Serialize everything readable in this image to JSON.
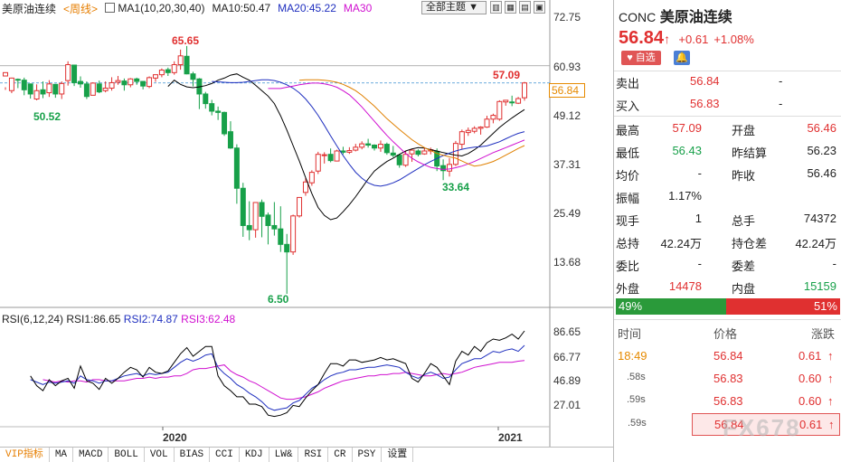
{
  "header": {
    "symbol": "美原油连续",
    "period": "<周线>",
    "ma_label": "MA1(10,20,30,40)",
    "ma10": "MA10:50.47",
    "ma20": "MA20:45.22",
    "ma30": "MA30",
    "theme": "全部主题"
  },
  "price_axis": [
    "72.75",
    "60.93",
    "49.12",
    "37.31",
    "25.49",
    "13.68"
  ],
  "rsi_axis": [
    "86.65",
    "66.77",
    "46.89",
    "27.01"
  ],
  "date_axis": [
    "2020",
    "2021"
  ],
  "annotations": {
    "high": "65.65",
    "low1": "50.52",
    "recent": "57.09",
    "dip": "33.64",
    "min": "6.50",
    "current": "56.84"
  },
  "rsi": {
    "label": "RSI(6,12,24)",
    "r1": "RSI1:86.65",
    "r2": "RSI2:74.87",
    "r3": "RSI3:62.48"
  },
  "tabs": [
    "VIP指标",
    "MA",
    "MACD",
    "BOLL",
    "VOL",
    "BIAS",
    "CCI",
    "KDJ",
    "LW&",
    "RSI",
    "CR",
    "PSY",
    "设置"
  ],
  "colors": {
    "up": "#e03030",
    "down": "#17a049",
    "ma10": "#000000",
    "ma20": "#1f2fbf",
    "ma30": "#d010d0",
    "ma40": "#e08000"
  },
  "chart_data": {
    "type": "candlestick",
    "y_range": [
      6.5,
      72.75
    ],
    "candles": [
      [
        58.5,
        59.3,
        55.8,
        55.2
      ],
      [
        55.0,
        58.0,
        58.1,
        54.4
      ],
      [
        57.7,
        57.5,
        57.9,
        55.6
      ],
      [
        57.5,
        55.2,
        58.1,
        53.9
      ],
      [
        56.6,
        54.2,
        56.7,
        53.1
      ],
      [
        53.0,
        55.0,
        56.5,
        52.7
      ],
      [
        55.2,
        54.2,
        57.2,
        53.2
      ],
      [
        54.5,
        56.6,
        57.5,
        53.5
      ],
      [
        56.5,
        54.2,
        56.6,
        53.3
      ],
      [
        54.2,
        56.7,
        57.2,
        53.0
      ],
      [
        57.4,
        61.2,
        62.0,
        56.2
      ],
      [
        61.1,
        56.9,
        61.2,
        56.1
      ],
      [
        57.2,
        56.6,
        58.4,
        55.7
      ],
      [
        56.6,
        53.6,
        57.2,
        53.0
      ],
      [
        53.9,
        56.8,
        57.0,
        53.9
      ],
      [
        56.6,
        54.7,
        57.4,
        54.4
      ],
      [
        55.0,
        55.6,
        57.2,
        54.6
      ],
      [
        55.6,
        56.9,
        58.2,
        55.0
      ],
      [
        57.0,
        57.4,
        58.5,
        56.4
      ],
      [
        57.3,
        56.4,
        57.9,
        55.0
      ],
      [
        56.4,
        57.8,
        58.0,
        55.8
      ],
      [
        57.8,
        57.2,
        58.1,
        56.4
      ],
      [
        57.2,
        56.1,
        57.3,
        55.3
      ],
      [
        56.0,
        58.1,
        58.4,
        55.6
      ],
      [
        58.0,
        58.8,
        58.8,
        57.1
      ],
      [
        58.8,
        59.9,
        60.3,
        58.2
      ],
      [
        60.0,
        59.3,
        60.5,
        58.5
      ],
      [
        59.3,
        61.2,
        62.0,
        58.8
      ],
      [
        61.2,
        63.3,
        64.8,
        60.0
      ],
      [
        63.2,
        59.0,
        65.65,
        58.9
      ],
      [
        59.0,
        57.7,
        59.5,
        56.0
      ],
      [
        57.8,
        54.2,
        58.0,
        50.6
      ],
      [
        54.2,
        51.9,
        54.7,
        50.7
      ],
      [
        51.9,
        50.1,
        52.8,
        49.1
      ],
      [
        50.1,
        49.8,
        51.2,
        48.0
      ],
      [
        49.8,
        44.7,
        50.0,
        44.2
      ],
      [
        45.2,
        41.3,
        47.7,
        41.1
      ],
      [
        41.3,
        31.7,
        42.2,
        28.0
      ],
      [
        31.7,
        22.8,
        33.0,
        20.1
      ],
      [
        22.8,
        21.8,
        28.6,
        19.3
      ],
      [
        21.8,
        28.3,
        28.3,
        19.9
      ],
      [
        28.3,
        25.0,
        29.0,
        20.0
      ],
      [
        25.3,
        22.8,
        25.9,
        18.3
      ],
      [
        22.8,
        22.0,
        28.4,
        20.4
      ],
      [
        22.0,
        18.3,
        27.4,
        16.5
      ],
      [
        18.3,
        16.5,
        20.8,
        6.5
      ],
      [
        16.5,
        25.1,
        25.4,
        15.8
      ],
      [
        25.1,
        29.5,
        29.6,
        24.7
      ],
      [
        30.7,
        33.2,
        34.1,
        29.9
      ],
      [
        33.0,
        35.5,
        36.0,
        32.3
      ],
      [
        35.8,
        39.8,
        40.4,
        35.1
      ],
      [
        39.7,
        39.7,
        40.3,
        37.6
      ],
      [
        39.8,
        38.3,
        41.2,
        37.9
      ],
      [
        38.2,
        40.6,
        40.9,
        38.1
      ],
      [
        40.6,
        40.3,
        41.6,
        39.8
      ],
      [
        40.3,
        40.7,
        41.5,
        39.9
      ],
      [
        40.8,
        41.5,
        42.3,
        40.5
      ],
      [
        41.5,
        42.3,
        42.9,
        41.0
      ],
      [
        42.3,
        42.0,
        43.5,
        41.4
      ],
      [
        42.0,
        41.3,
        42.2,
        40.7
      ],
      [
        41.3,
        42.2,
        43.1,
        40.4
      ],
      [
        42.2,
        40.2,
        42.6,
        39.7
      ],
      [
        40.1,
        39.6,
        41.8,
        39.1
      ],
      [
        39.6,
        37.3,
        39.9,
        36.6
      ],
      [
        37.2,
        39.8,
        40.5,
        36.8
      ],
      [
        39.9,
        40.8,
        41.0,
        38.0
      ],
      [
        40.6,
        39.8,
        41.0,
        39.3
      ],
      [
        39.9,
        40.6,
        41.5,
        39.7
      ],
      [
        40.6,
        40.9,
        41.4,
        39.8
      ],
      [
        40.5,
        37.0,
        41.2,
        35.8
      ],
      [
        37.1,
        35.9,
        38.6,
        33.64
      ],
      [
        35.8,
        37.4,
        38.9,
        34.5
      ],
      [
        37.4,
        42.4,
        43.0,
        37.0
      ],
      [
        42.2,
        45.2,
        45.7,
        41.0
      ],
      [
        45.0,
        45.5,
        46.2,
        44.2
      ],
      [
        45.3,
        46.0,
        46.5,
        44.8
      ],
      [
        46.0,
        46.3,
        46.5,
        44.5
      ],
      [
        46.3,
        48.2,
        49.0,
        46.1
      ],
      [
        48.2,
        49.1,
        49.5,
        47.2
      ],
      [
        48.2,
        52.4,
        52.7,
        47.8
      ],
      [
        52.3,
        52.7,
        52.8,
        51.4
      ],
      [
        52.3,
        52.2,
        53.8,
        51.3
      ],
      [
        52.0,
        53.1,
        53.5,
        51.8
      ],
      [
        53.3,
        56.84,
        57.09,
        52.6
      ]
    ],
    "ma10": [
      56.0,
      57.5,
      56.5,
      55.9,
      55.7,
      55.9,
      56.2,
      56.7,
      57.5,
      58.0,
      58.7,
      59.0,
      58.2,
      57.5,
      56.3,
      55.0,
      53.7,
      51.9,
      49.0,
      45.6,
      41.9,
      38.2,
      34.2,
      30.4,
      27.1,
      25.2,
      24.2,
      24.6,
      26.1,
      27.8,
      29.7,
      31.8,
      33.9,
      35.8,
      37.0,
      38.1,
      38.9,
      39.8,
      40.6,
      41.1,
      41.4,
      41.3,
      40.9,
      40.6,
      40.2,
      39.9,
      39.6,
      39.4,
      40.0,
      40.9,
      42.0,
      43.4,
      44.8,
      46.2,
      47.4,
      48.5,
      49.5,
      50.47
    ],
    "ma20": [
      57.2,
      57.1,
      57.0,
      56.9,
      56.9,
      57.0,
      57.2,
      57.4,
      57.6,
      57.6,
      57.4,
      57.0,
      56.4,
      55.6,
      54.5,
      53.0,
      51.2,
      49.1,
      46.7,
      44.2,
      41.8,
      39.5,
      37.4,
      35.5,
      34.1,
      33.0,
      32.4,
      32.2,
      32.5,
      33.0,
      33.7,
      34.6,
      35.5,
      36.4,
      37.3,
      38.1,
      38.8,
      39.5,
      40.1,
      40.6,
      41.0,
      41.3,
      41.5,
      41.6,
      41.8,
      42.3,
      42.8,
      43.5,
      44.2,
      44.8,
      45.22
    ],
    "ma30": [
      55.5,
      55.5,
      55.5,
      55.8,
      56.1,
      56.4,
      56.6,
      56.8,
      56.8,
      56.6,
      56.3,
      55.8,
      55.0,
      54.0,
      52.6,
      51.1,
      49.4,
      47.7,
      46.0,
      44.3,
      42.8,
      41.4,
      40.0,
      38.9,
      38.0,
      37.3,
      36.7,
      36.4,
      36.2,
      36.3,
      36.6,
      37.0,
      37.5,
      38.1,
      38.8,
      39.5,
      40.2,
      40.8,
      41.4,
      42.0,
      42.6,
      43.2
    ],
    "ma40": [
      57.5,
      57.6,
      57.6,
      57.6,
      57.5,
      57.3,
      57.0,
      56.5,
      55.8,
      55.0,
      53.9,
      52.6,
      51.3,
      49.8,
      48.3,
      47.0,
      45.7,
      44.5,
      43.3,
      42.3,
      41.4,
      40.7,
      40.0,
      39.6,
      39.2,
      38.9,
      38.2,
      37.5,
      37.0,
      37.2,
      37.6,
      38.1,
      38.8,
      39.6,
      40.4,
      41.2,
      41.9
    ],
    "rsi_y_range": [
      27.01,
      86.65
    ],
    "rsi1": [
      50,
      42,
      38,
      47,
      42,
      46,
      48,
      40,
      58,
      46,
      44,
      39,
      48,
      44,
      48,
      53,
      57,
      55,
      49,
      57,
      53,
      52,
      54,
      61,
      68,
      73,
      66,
      70,
      74,
      74,
      50,
      42,
      38,
      33,
      33,
      27,
      27,
      25,
      18,
      17,
      18,
      20,
      26,
      25,
      32,
      38,
      43,
      52,
      60,
      60,
      58,
      63,
      63,
      61,
      62,
      63,
      65,
      63,
      64,
      62,
      60,
      48,
      45,
      52,
      60,
      57,
      50,
      43,
      62,
      70,
      67,
      74,
      70,
      77,
      80,
      79,
      81,
      84,
      80,
      86.65
    ],
    "rsi2": [
      47,
      45,
      43,
      45,
      44,
      45,
      46,
      44,
      50,
      47,
      46,
      44,
      46,
      46,
      48,
      50,
      51,
      52,
      50,
      52,
      51,
      52,
      53,
      57,
      61,
      64,
      62,
      64,
      67,
      68,
      57,
      52,
      48,
      43,
      40,
      36,
      33,
      29,
      24,
      22,
      23,
      24,
      28,
      30,
      35,
      40,
      43,
      47,
      50,
      52,
      53,
      55,
      55,
      56,
      57,
      57,
      58,
      59,
      58,
      57,
      53,
      50,
      48,
      51,
      53,
      51,
      48,
      49,
      55,
      60,
      62,
      64,
      64,
      67,
      70,
      69,
      71,
      72,
      70,
      74.87
    ],
    "rsi3": [
      47,
      46,
      45,
      46,
      45,
      46,
      46,
      45,
      47,
      47,
      46,
      46,
      46,
      46,
      47,
      48,
      48,
      49,
      48,
      49,
      49,
      50,
      50,
      52,
      55,
      56,
      56,
      57,
      58,
      59,
      54,
      51,
      49,
      46,
      44,
      41,
      38,
      35,
      32,
      31,
      31,
      32,
      33,
      35,
      37,
      40,
      42,
      44,
      46,
      47,
      48,
      49,
      50,
      50,
      51,
      51,
      52,
      52,
      53,
      52,
      51,
      50,
      50,
      51,
      52,
      51,
      52,
      53,
      55,
      57,
      58,
      59,
      60,
      61,
      61,
      61,
      62,
      62.48
    ]
  },
  "panel": {
    "code": "CONC",
    "name": "美原油连续",
    "price": "56.84",
    "arrow": "↑",
    "change": "+0.61",
    "pct": "+1.08%",
    "fav": "♥ 自选",
    "sell": {
      "label": "卖出",
      "price": "56.84",
      "vol": "-"
    },
    "buy": {
      "label": "买入",
      "price": "56.83",
      "vol": "-"
    },
    "stats": [
      {
        "l1": "最高",
        "v1": "57.09",
        "l2": "开盘",
        "v2": "56.46"
      },
      {
        "l1": "最低",
        "v1": "56.43",
        "l2": "昨结算",
        "v2": "56.23"
      },
      {
        "l1": "均价",
        "v1": "-",
        "l2": "昨收",
        "v2": "56.46"
      },
      {
        "l1": "振幅",
        "v1": "1.17%",
        "l2": "",
        "v2": ""
      },
      {
        "l1": "现手",
        "v1": "1",
        "l2": "总手",
        "v2": "74372"
      },
      {
        "l1": "总持",
        "v1": "42.24万",
        "l2": "持仓差",
        "v2": "42.24万"
      },
      {
        "l1": "委比",
        "v1": "-",
        "l2": "委差",
        "v2": "-"
      },
      {
        "l1": "外盘",
        "v1": "14478",
        "l2": "内盘",
        "v2": "15159"
      }
    ],
    "ratio_out": "49%",
    "ratio_in": "51%",
    "trade_head": {
      "time": "时间",
      "price": "价格",
      "chg": "涨跌"
    },
    "trades": [
      {
        "time": "18:49",
        "price": "56.84",
        "chg": "0.61"
      },
      {
        "time": ".58s",
        "price": "56.83",
        "chg": "0.60"
      },
      {
        "time": ".59s",
        "price": "56.83",
        "chg": "0.60"
      },
      {
        "time": ".59s",
        "price": "56.84",
        "chg": "0.61"
      }
    ],
    "watermark": "FX678"
  }
}
